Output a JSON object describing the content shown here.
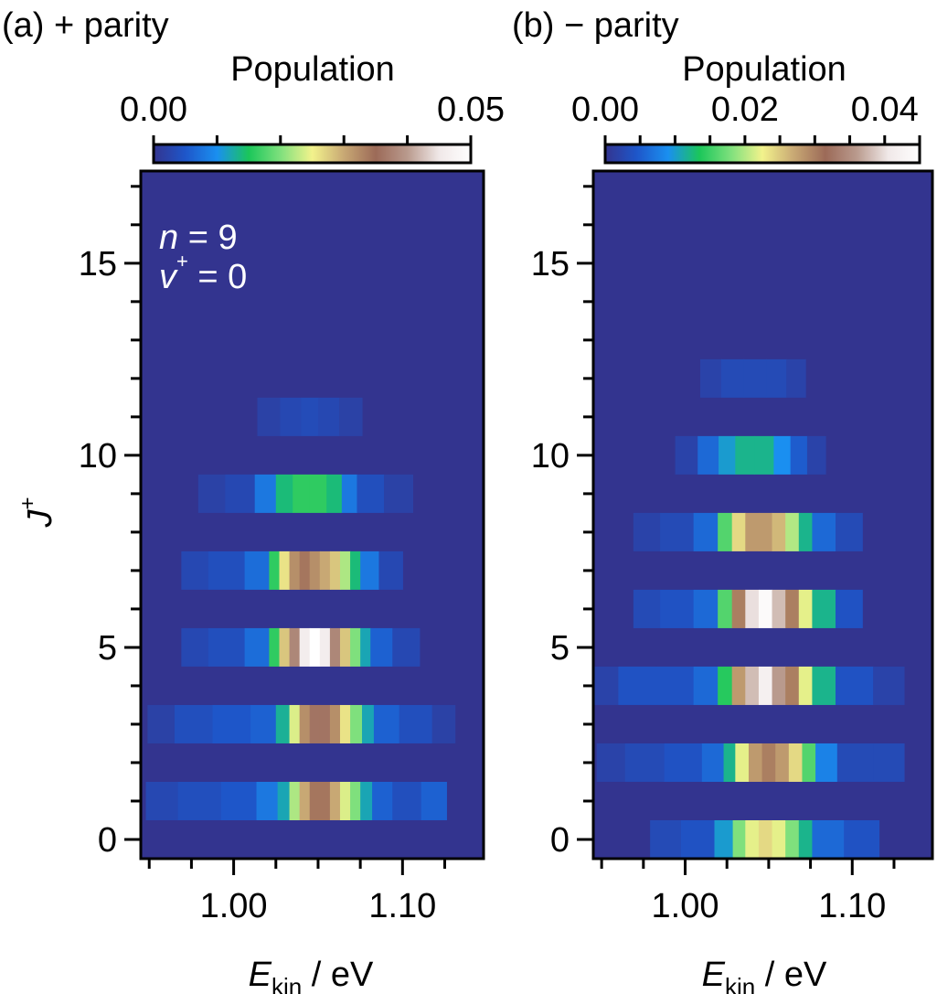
{
  "chart_data": [
    {
      "type": "heatmap",
      "panel_title": "(a) + parity",
      "colorbar": {
        "label": "Population",
        "range": [
          0.0,
          0.05
        ],
        "tick_labels": [
          "0.00",
          "0.05"
        ],
        "tick_values": [
          0.0,
          0.05
        ]
      },
      "annotation": {
        "n_label": "n = 9",
        "v_label": "v+ = 0"
      },
      "xlabel": "E_kin / eV",
      "ylabel": "J+",
      "xlim": [
        0.945,
        1.148
      ],
      "ylim": [
        -0.5,
        17.4
      ],
      "x_tick_labels": [
        "1.00",
        "1.10"
      ],
      "x_tick_values": [
        1.0,
        1.1
      ],
      "y_tick_labels": [
        "0",
        "5",
        "10",
        "15"
      ],
      "y_tick_values": [
        0,
        5,
        10,
        15
      ],
      "background_value": 0.0,
      "bands": [
        {
          "J": 1,
          "segments": [
            [
              0.954,
              0.003
            ],
            [
              0.98,
              0.004
            ],
            [
              1.005,
              0.005
            ],
            [
              1.022,
              0.008
            ],
            [
              1.03,
              0.012
            ],
            [
              1.036,
              0.022
            ],
            [
              1.042,
              0.03
            ],
            [
              1.048,
              0.034
            ],
            [
              1.054,
              0.034
            ],
            [
              1.06,
              0.03
            ],
            [
              1.066,
              0.024
            ],
            [
              1.072,
              0.02
            ],
            [
              1.078,
              0.012
            ],
            [
              1.086,
              0.006
            ],
            [
              1.102,
              0.004
            ],
            [
              1.12,
              0.006
            ]
          ]
        },
        {
          "J": 3,
          "segments": [
            [
              0.955,
              0.002
            ],
            [
              0.975,
              0.004
            ],
            [
              1.0,
              0.005
            ],
            [
              1.02,
              0.006
            ],
            [
              1.03,
              0.013
            ],
            [
              1.036,
              0.024
            ],
            [
              1.042,
              0.032
            ],
            [
              1.048,
              0.036
            ],
            [
              1.054,
              0.036
            ],
            [
              1.06,
              0.032
            ],
            [
              1.066,
              0.026
            ],
            [
              1.072,
              0.02
            ],
            [
              1.08,
              0.012
            ],
            [
              1.086,
              0.006
            ],
            [
              1.11,
              0.004
            ],
            [
              1.125,
              0.002
            ]
          ]
        },
        {
          "J": 5,
          "segments": [
            [
              0.975,
              0.003
            ],
            [
              0.995,
              0.004
            ],
            [
              1.018,
              0.007
            ],
            [
              1.024,
              0.016
            ],
            [
              1.03,
              0.028
            ],
            [
              1.036,
              0.038
            ],
            [
              1.042,
              0.046
            ],
            [
              1.048,
              0.05
            ],
            [
              1.054,
              0.046
            ],
            [
              1.06,
              0.038
            ],
            [
              1.066,
              0.028
            ],
            [
              1.072,
              0.02
            ],
            [
              1.078,
              0.012
            ],
            [
              1.084,
              0.006
            ],
            [
              1.104,
              0.003
            ]
          ]
        },
        {
          "J": 7,
          "segments": [
            [
              0.975,
              0.003
            ],
            [
              0.995,
              0.004
            ],
            [
              1.018,
              0.007
            ],
            [
              1.024,
              0.016
            ],
            [
              1.03,
              0.026
            ],
            [
              1.036,
              0.032
            ],
            [
              1.042,
              0.034
            ],
            [
              1.048,
              0.032
            ],
            [
              1.054,
              0.03
            ],
            [
              1.06,
              0.028
            ],
            [
              1.066,
              0.022
            ],
            [
              1.072,
              0.014
            ],
            [
              1.078,
              0.008
            ],
            [
              1.094,
              0.003
            ]
          ]
        },
        {
          "J": 9,
          "segments": [
            [
              0.985,
              0.002
            ],
            [
              1.005,
              0.003
            ],
            [
              1.02,
              0.008
            ],
            [
              1.03,
              0.014
            ],
            [
              1.04,
              0.016
            ],
            [
              1.05,
              0.016
            ],
            [
              1.06,
              0.014
            ],
            [
              1.068,
              0.008
            ],
            [
              1.078,
              0.004
            ],
            [
              1.1,
              0.002
            ]
          ]
        },
        {
          "J": 11,
          "segments": [
            [
              1.02,
              0.002
            ],
            [
              1.035,
              0.003
            ],
            [
              1.045,
              0.0035
            ],
            [
              1.055,
              0.003
            ],
            [
              1.07,
              0.002
            ]
          ]
        }
      ]
    },
    {
      "type": "heatmap",
      "panel_title": "(b) − parity",
      "colorbar": {
        "label": "Population",
        "range": [
          0.0,
          0.045
        ],
        "tick_labels": [
          "0.00",
          "0.02",
          "0.04"
        ],
        "tick_values": [
          0.0,
          0.02,
          0.04
        ]
      },
      "xlabel": "E_kin / eV",
      "ylabel": "",
      "xlim": [
        0.945,
        1.148
      ],
      "ylim": [
        -0.5,
        17.4
      ],
      "x_tick_labels": [
        "1.00",
        "1.10"
      ],
      "x_tick_values": [
        1.0,
        1.1
      ],
      "y_tick_labels": [
        "0",
        "5",
        "10",
        "15"
      ],
      "y_tick_values": [
        0,
        5,
        10,
        15
      ],
      "background_value": 0.0,
      "bands": [
        {
          "J": 0,
          "segments": [
            [
              0.985,
              0.003
            ],
            [
              1.01,
              0.004
            ],
            [
              1.025,
              0.01
            ],
            [
              1.032,
              0.018
            ],
            [
              1.04,
              0.022
            ],
            [
              1.048,
              0.024
            ],
            [
              1.056,
              0.022
            ],
            [
              1.064,
              0.018
            ],
            [
              1.072,
              0.012
            ],
            [
              1.08,
              0.006
            ],
            [
              1.11,
              0.004
            ]
          ]
        },
        {
          "J": 2,
          "segments": [
            [
              0.953,
              0.002
            ],
            [
              0.975,
              0.003
            ],
            [
              1.0,
              0.004
            ],
            [
              1.02,
              0.006
            ],
            [
              1.026,
              0.012
            ],
            [
              1.034,
              0.022
            ],
            [
              1.042,
              0.028
            ],
            [
              1.05,
              0.03
            ],
            [
              1.058,
              0.028
            ],
            [
              1.066,
              0.024
            ],
            [
              1.074,
              0.016
            ],
            [
              1.082,
              0.008
            ],
            [
              1.1,
              0.003
            ],
            [
              1.125,
              0.003
            ]
          ]
        },
        {
          "J": 4,
          "segments": [
            [
              0.95,
              0.002
            ],
            [
              0.97,
              0.004
            ],
            [
              0.995,
              0.004
            ],
            [
              1.015,
              0.006
            ],
            [
              1.024,
              0.014
            ],
            [
              1.032,
              0.028
            ],
            [
              1.04,
              0.038
            ],
            [
              1.048,
              0.042
            ],
            [
              1.056,
              0.036
            ],
            [
              1.064,
              0.03
            ],
            [
              1.072,
              0.022
            ],
            [
              1.08,
              0.012
            ],
            [
              1.1,
              0.004
            ],
            [
              1.125,
              0.002
            ]
          ]
        },
        {
          "J": 6,
          "segments": [
            [
              0.975,
              0.003
            ],
            [
              0.995,
              0.004
            ],
            [
              1.015,
              0.006
            ],
            [
              1.024,
              0.016
            ],
            [
              1.032,
              0.03
            ],
            [
              1.04,
              0.04
            ],
            [
              1.048,
              0.044
            ],
            [
              1.056,
              0.038
            ],
            [
              1.064,
              0.03
            ],
            [
              1.072,
              0.022
            ],
            [
              1.08,
              0.012
            ],
            [
              1.1,
              0.004
            ]
          ]
        },
        {
          "J": 8,
          "segments": [
            [
              0.975,
              0.002
            ],
            [
              0.995,
              0.003
            ],
            [
              1.015,
              0.006
            ],
            [
              1.024,
              0.016
            ],
            [
              1.032,
              0.024
            ],
            [
              1.04,
              0.028
            ],
            [
              1.048,
              0.028
            ],
            [
              1.056,
              0.026
            ],
            [
              1.064,
              0.02
            ],
            [
              1.072,
              0.012
            ],
            [
              1.08,
              0.006
            ],
            [
              1.1,
              0.003
            ]
          ]
        },
        {
          "J": 10,
          "segments": [
            [
              1.0,
              0.002
            ],
            [
              1.015,
              0.006
            ],
            [
              1.025,
              0.01
            ],
            [
              1.035,
              0.012
            ],
            [
              1.048,
              0.012
            ],
            [
              1.058,
              0.009
            ],
            [
              1.068,
              0.005
            ],
            [
              1.078,
              0.002
            ]
          ]
        },
        {
          "J": 12,
          "segments": [
            [
              1.015,
              0.002
            ],
            [
              1.028,
              0.003
            ],
            [
              1.042,
              0.003
            ],
            [
              1.055,
              0.003
            ],
            [
              1.066,
              0.002
            ]
          ]
        }
      ]
    }
  ],
  "colormap": [
    "#33348f",
    "#1e56c9",
    "#1a8ff0",
    "#1bc65a",
    "#7fe07d",
    "#f2f28c",
    "#c8a874",
    "#9c6a58",
    "#b99a8d",
    "#f0e8e8",
    "#ffffff"
  ],
  "sub_kin": "kin",
  "unit_ev": " / eV",
  "italic_E": "E",
  "italic_J": "J",
  "italic_n": "n",
  "italic_v": "v",
  "plus_sup": "+",
  "equals_9": " = 9",
  "equals_0": " = 0"
}
